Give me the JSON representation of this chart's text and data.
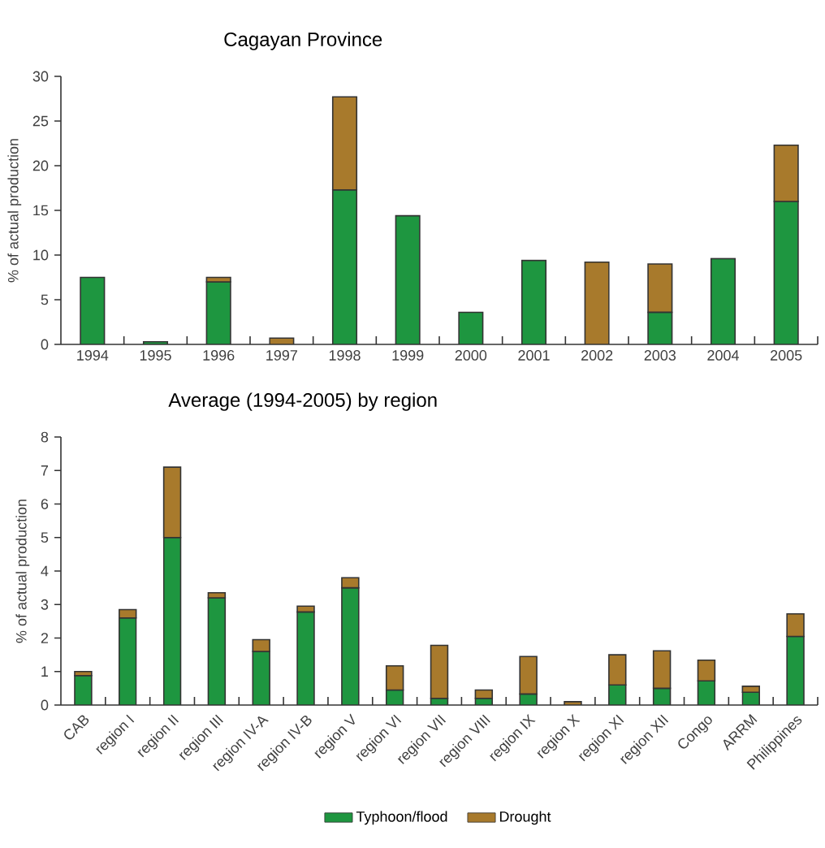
{
  "chart_data": [
    {
      "type": "bar",
      "title": "Cagayan Province",
      "ylabel": "% of actual production",
      "stacked": true,
      "categories": [
        "1994",
        "1995",
        "1996",
        "1997",
        "1998",
        "1999",
        "2000",
        "2001",
        "2002",
        "2003",
        "2004",
        "2005"
      ],
      "series": [
        {
          "color": "#1e9640",
          "values": [
            7.5,
            0.3,
            7.0,
            null,
            17.3,
            14.4,
            3.6,
            9.4,
            null,
            3.6,
            9.6,
            16.0
          ]
        },
        {
          "color": "#a87a2c",
          "values": [
            null,
            null,
            0.5,
            0.7,
            10.4,
            null,
            null,
            null,
            9.2,
            5.4,
            null,
            6.3
          ]
        }
      ],
      "ylim": [
        0,
        30
      ],
      "yticks": [
        0,
        5,
        10,
        15,
        20,
        25,
        30
      ]
    },
    {
      "type": "bar",
      "title": "Average (1994-2005) by region",
      "ylabel": "% of actual production",
      "stacked": true,
      "categories": [
        "CAB",
        "region I",
        "region II",
        "region III",
        "region IV-A",
        "region IV-B",
        "region V",
        "region VI",
        "region VII",
        "region VIII",
        "region IX",
        "region X",
        "region XI",
        "region XII",
        "Congo",
        "ARRM",
        "Philippines"
      ],
      "series": [
        {
          "name": "Typhoon/flood",
          "color": "#1e9640",
          "values": [
            0.88,
            2.6,
            5.0,
            3.2,
            1.6,
            2.78,
            3.5,
            0.45,
            0.2,
            0.2,
            0.33,
            null,
            0.6,
            0.5,
            0.72,
            0.38,
            2.05
          ]
        },
        {
          "name": "Drought",
          "color": "#a87a2c",
          "values": [
            0.12,
            0.25,
            2.1,
            0.15,
            0.35,
            0.17,
            0.3,
            0.72,
            1.58,
            0.25,
            1.12,
            0.1,
            0.9,
            1.12,
            0.62,
            0.18,
            0.67
          ]
        }
      ],
      "ylim": [
        0,
        8
      ],
      "yticks": [
        0,
        1,
        2,
        3,
        4,
        5,
        6,
        7,
        8
      ],
      "legend": "bottom"
    }
  ]
}
